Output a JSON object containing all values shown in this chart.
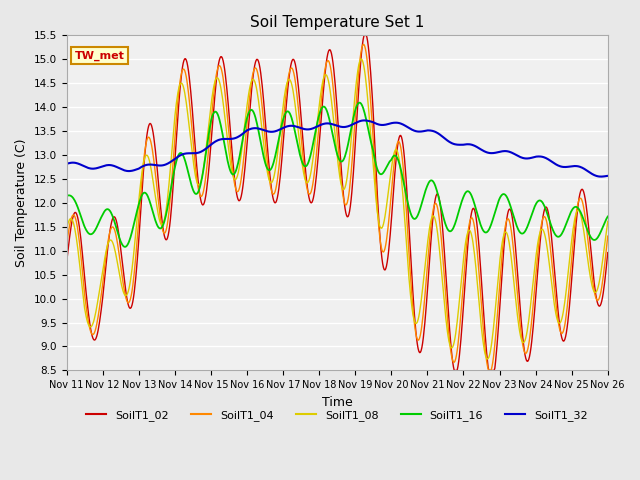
{
  "title": "Soil Temperature Set 1",
  "xlabel": "Time",
  "ylabel": "Soil Temperature (C)",
  "ylim": [
    8.5,
    15.5
  ],
  "yticks": [
    8.5,
    9.0,
    9.5,
    10.0,
    10.5,
    11.0,
    11.5,
    12.0,
    12.5,
    13.0,
    13.5,
    14.0,
    14.5,
    15.0,
    15.5
  ],
  "xtick_labels": [
    "Nov 11",
    "Nov 12",
    "Nov 13",
    "Nov 14",
    "Nov 15",
    "Nov 16",
    "Nov 17",
    "Nov 18",
    "Nov 19",
    "Nov 20",
    "Nov 21",
    "Nov 22",
    "Nov 23",
    "Nov 24",
    "Nov 25",
    "Nov 26"
  ],
  "colors": {
    "SoilT1_02": "#cc0000",
    "SoilT1_04": "#ff8800",
    "SoilT1_08": "#ddcc00",
    "SoilT1_16": "#00cc00",
    "SoilT1_32": "#0000cc"
  },
  "annotation_text": "TW_met",
  "annotation_bg": "#ffffcc",
  "annotation_border": "#cc8800",
  "bg_color": "#e8e8e8",
  "plot_bg_color": "#f0f0f0"
}
